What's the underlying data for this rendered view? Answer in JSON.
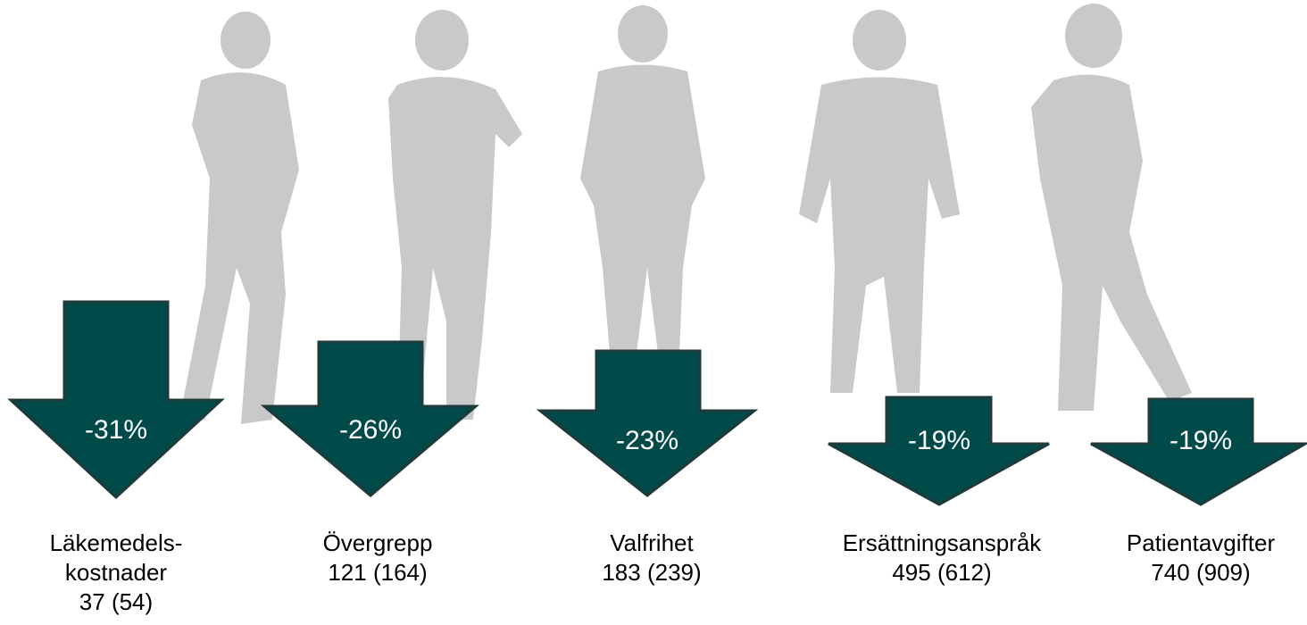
{
  "items": [
    {
      "change": "-31%",
      "name_lines": [
        "Läkemedels-",
        "kostnader"
      ],
      "counts": "37 (54)"
    },
    {
      "change": "-26%",
      "name_lines": [
        "Övergrepp"
      ],
      "counts": "121 (164)"
    },
    {
      "change": "-23%",
      "name_lines": [
        "Valfrihet"
      ],
      "counts": "183 (239)"
    },
    {
      "change": "-19%",
      "name_lines": [
        "Ersättningsanspråk"
      ],
      "counts": "495 (612)"
    },
    {
      "change": "-19%",
      "name_lines": [
        "Patientavgifter"
      ],
      "counts": "740 (909)"
    }
  ]
}
